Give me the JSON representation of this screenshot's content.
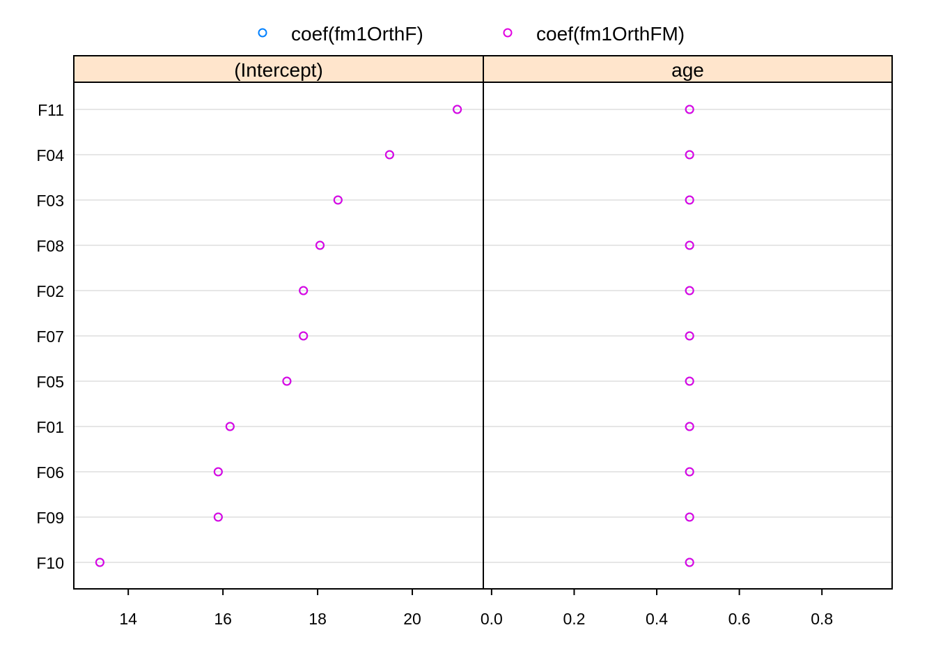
{
  "chart_data": {
    "type": "scatter",
    "legend_position": "top",
    "colors": {
      "coef(fm1OrthF)": "#0080ff",
      "coef(fm1OrthFM)": "#e100e1",
      "strip_background": "#ffe5cc",
      "gridline": "#e6e6e6"
    },
    "series": [
      {
        "name": "coef(fm1OrthF)",
        "marker": "open-circle"
      },
      {
        "name": "coef(fm1OrthFM)",
        "marker": "open-circle"
      }
    ],
    "categories": [
      "F10",
      "F09",
      "F06",
      "F01",
      "F05",
      "F07",
      "F02",
      "F08",
      "F03",
      "F04",
      "F11"
    ],
    "panels": [
      {
        "strip": "(Intercept)",
        "xlim": [
          12.85,
          21.5
        ],
        "xticks": [
          "14",
          "16",
          "18",
          "20"
        ],
        "xtick_values": [
          14,
          16,
          18,
          20
        ],
        "values": {
          "coef(fm1OrthF)": [
            13.4,
            15.9,
            15.9,
            16.15,
            17.35,
            17.7,
            17.7,
            18.05,
            18.43,
            19.52,
            20.95
          ],
          "coef(fm1OrthFM)": [
            13.4,
            15.9,
            15.9,
            16.15,
            17.35,
            17.7,
            17.7,
            18.05,
            18.43,
            19.52,
            20.95
          ]
        }
      },
      {
        "strip": "age",
        "xlim": [
          -0.02,
          0.97
        ],
        "xticks": [
          "0.0",
          "0.2",
          "0.4",
          "0.6",
          "0.8"
        ],
        "xtick_values": [
          0,
          0.2,
          0.4,
          0.6,
          0.8
        ],
        "values": {
          "coef(fm1OrthF)": [
            0.4795,
            0.4795,
            0.4795,
            0.4795,
            0.4795,
            0.4795,
            0.4795,
            0.4795,
            0.4795,
            0.4795,
            0.4795
          ],
          "coef(fm1OrthFM)": [
            0.4795,
            0.4795,
            0.4795,
            0.4795,
            0.4795,
            0.4795,
            0.4795,
            0.4795,
            0.4795,
            0.4795,
            0.4795
          ]
        }
      }
    ]
  }
}
